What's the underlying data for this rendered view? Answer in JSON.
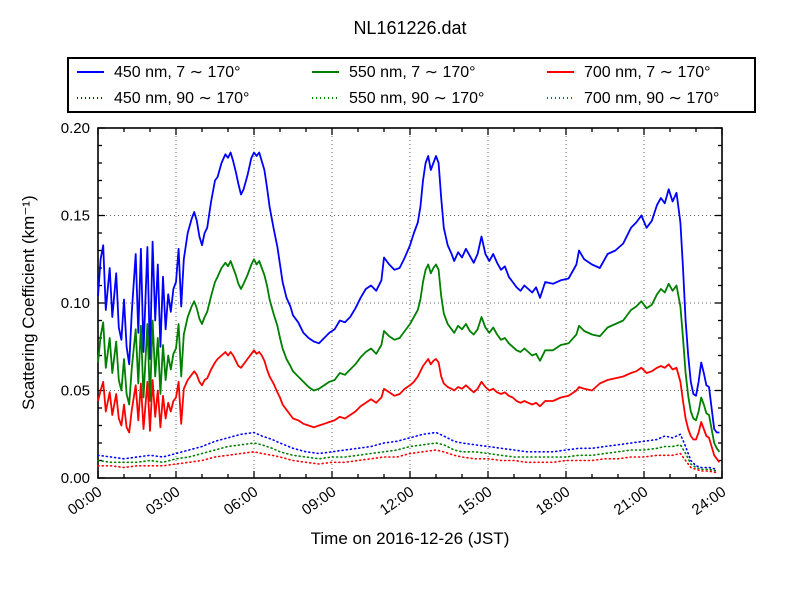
{
  "title": "NL161226.dat",
  "legend": {
    "entries": [
      {
        "id": "450-solid",
        "label": "450 nm, 7 ∼ 170°",
        "color": "#0000ff",
        "style": "solid"
      },
      {
        "id": "550-solid",
        "label": "550 nm, 7 ∼ 170°",
        "color": "#008000",
        "style": "solid"
      },
      {
        "id": "700-solid",
        "label": "700 nm, 7 ∼ 170°",
        "color": "#ff0000",
        "style": "solid"
      },
      {
        "id": "450-dotted",
        "label": "450 nm, 90 ∼ 170°",
        "color": "#0000ff",
        "style": "dotted"
      },
      {
        "id": "550-dotted",
        "label": "550 nm, 90 ∼ 170°",
        "color": "#008000",
        "style": "dotted"
      },
      {
        "id": "700-dotted",
        "label": "700 nm, 90 ∼ 170°",
        "color": "#ff0000",
        "style": "dotted"
      }
    ]
  },
  "chart_data": {
    "type": "line",
    "title": "NL161226.dat",
    "xlabel": "Time on 2016-12-26 (JST)",
    "ylabel": "Scattering Coefficient (km⁻¹)",
    "xlim": [
      0,
      24
    ],
    "ylim": [
      0,
      0.2
    ],
    "grid": true,
    "legend_position": "top",
    "xticks": {
      "values": [
        0,
        3,
        6,
        9,
        12,
        15,
        18,
        21,
        24
      ],
      "labels": [
        "00:00",
        "03:00",
        "06:00",
        "09:00",
        "12:00",
        "15:00",
        "18:00",
        "21:00",
        "24:00"
      ],
      "minor_step": 1,
      "rotation": -35
    },
    "yticks": {
      "values": [
        0,
        0.05,
        0.1,
        0.15,
        0.2
      ],
      "labels": [
        "0.00",
        "0.05",
        "0.10",
        "0.15",
        "0.20"
      ],
      "minor_step": 0.01
    },
    "x_solid": [
      0,
      0.1,
      0.2,
      0.3,
      0.45,
      0.55,
      0.7,
      0.8,
      0.9,
      1.0,
      1.1,
      1.2,
      1.3,
      1.45,
      1.55,
      1.65,
      1.75,
      1.9,
      2.0,
      2.1,
      2.2,
      2.3,
      2.4,
      2.5,
      2.6,
      2.7,
      2.8,
      2.9,
      3.0,
      3.1,
      3.2,
      3.3,
      3.45,
      3.6,
      3.7,
      3.8,
      3.9,
      4.0,
      4.1,
      4.2,
      4.35,
      4.5,
      4.6,
      4.75,
      4.9,
      5.0,
      5.1,
      5.2,
      5.3,
      5.4,
      5.5,
      5.6,
      5.75,
      5.9,
      6.0,
      6.1,
      6.2,
      6.3,
      6.4,
      6.5,
      6.6,
      6.75,
      6.9,
      7.0,
      7.1,
      7.25,
      7.4,
      7.5,
      7.7,
      7.9,
      8.1,
      8.3,
      8.5,
      8.7,
      8.9,
      9.1,
      9.3,
      9.5,
      9.7,
      9.9,
      10.1,
      10.3,
      10.5,
      10.7,
      10.9,
      11.0,
      11.2,
      11.4,
      11.6,
      11.8,
      12.0,
      12.15,
      12.3,
      12.4,
      12.5,
      12.6,
      12.7,
      12.8,
      12.9,
      13.0,
      13.1,
      13.2,
      13.3,
      13.45,
      13.6,
      13.7,
      13.85,
      14.0,
      14.15,
      14.3,
      14.45,
      14.6,
      14.75,
      14.9,
      15.05,
      15.2,
      15.35,
      15.5,
      15.65,
      15.8,
      15.95,
      16.1,
      16.25,
      16.4,
      16.55,
      16.7,
      16.85,
      17.0,
      17.2,
      17.5,
      17.8,
      18.1,
      18.4,
      18.5,
      18.7,
      19.0,
      19.3,
      19.6,
      19.9,
      20.2,
      20.5,
      20.7,
      20.9,
      21.1,
      21.3,
      21.5,
      21.65,
      21.8,
      21.95,
      22.1,
      22.25,
      22.4,
      22.5,
      22.6,
      22.7,
      22.8,
      22.9,
      23.0,
      23.1,
      23.2,
      23.3,
      23.4,
      23.5,
      23.6,
      23.7,
      23.8,
      23.9
    ],
    "x_dotted": [
      0,
      0.5,
      1,
      1.5,
      2,
      2.5,
      3,
      3.5,
      4,
      4.5,
      5,
      5.5,
      6,
      6.3,
      6.7,
      7,
      7.5,
      8,
      8.5,
      9,
      9.5,
      10,
      10.5,
      11,
      11.5,
      12,
      12.5,
      13,
      13.3,
      13.7,
      14,
      14.5,
      15,
      15.5,
      16,
      16.5,
      17,
      17.5,
      18,
      18.5,
      19,
      19.5,
      20,
      20.5,
      21,
      21.5,
      21.8,
      22.1,
      22.4,
      22.6,
      22.8,
      23,
      23.2,
      23.5,
      23.8
    ],
    "series": [
      {
        "id": "450-solid",
        "name": "450 nm, 7 ∼ 170°",
        "color": "#0000ff",
        "style": "solid",
        "x_ref": "x_solid",
        "y": [
          0.104,
          0.125,
          0.133,
          0.096,
          0.12,
          0.092,
          0.117,
          0.086,
          0.079,
          0.102,
          0.075,
          0.065,
          0.095,
          0.128,
          0.083,
          0.131,
          0.072,
          0.132,
          0.068,
          0.135,
          0.09,
          0.122,
          0.075,
          0.115,
          0.085,
          0.105,
          0.095,
          0.108,
          0.112,
          0.131,
          0.098,
          0.125,
          0.14,
          0.148,
          0.152,
          0.147,
          0.138,
          0.133,
          0.14,
          0.143,
          0.158,
          0.17,
          0.172,
          0.18,
          0.185,
          0.183,
          0.186,
          0.181,
          0.175,
          0.168,
          0.162,
          0.165,
          0.173,
          0.183,
          0.186,
          0.184,
          0.186,
          0.181,
          0.176,
          0.166,
          0.155,
          0.143,
          0.132,
          0.122,
          0.112,
          0.103,
          0.098,
          0.093,
          0.089,
          0.083,
          0.08,
          0.078,
          0.077,
          0.08,
          0.083,
          0.085,
          0.09,
          0.089,
          0.092,
          0.097,
          0.103,
          0.108,
          0.11,
          0.107,
          0.113,
          0.126,
          0.122,
          0.119,
          0.12,
          0.126,
          0.133,
          0.14,
          0.146,
          0.155,
          0.17,
          0.18,
          0.184,
          0.176,
          0.18,
          0.184,
          0.18,
          0.16,
          0.143,
          0.133,
          0.128,
          0.124,
          0.129,
          0.126,
          0.131,
          0.127,
          0.123,
          0.128,
          0.138,
          0.128,
          0.124,
          0.128,
          0.123,
          0.119,
          0.121,
          0.115,
          0.112,
          0.109,
          0.107,
          0.11,
          0.108,
          0.106,
          0.109,
          0.103,
          0.112,
          0.111,
          0.113,
          0.114,
          0.122,
          0.13,
          0.125,
          0.122,
          0.12,
          0.128,
          0.13,
          0.134,
          0.143,
          0.146,
          0.15,
          0.143,
          0.147,
          0.156,
          0.16,
          0.157,
          0.165,
          0.158,
          0.163,
          0.146,
          0.12,
          0.09,
          0.07,
          0.055,
          0.048,
          0.047,
          0.055,
          0.066,
          0.06,
          0.053,
          0.052,
          0.04,
          0.028,
          0.026,
          0.026
        ]
      },
      {
        "id": "550-solid",
        "name": "550 nm, 7 ∼ 170°",
        "color": "#008000",
        "style": "solid",
        "x_ref": "x_solid",
        "y": [
          0.066,
          0.081,
          0.089,
          0.063,
          0.08,
          0.06,
          0.078,
          0.056,
          0.05,
          0.068,
          0.048,
          0.042,
          0.063,
          0.085,
          0.054,
          0.087,
          0.046,
          0.088,
          0.044,
          0.09,
          0.058,
          0.08,
          0.048,
          0.076,
          0.056,
          0.07,
          0.062,
          0.071,
          0.074,
          0.088,
          0.058,
          0.082,
          0.092,
          0.098,
          0.101,
          0.097,
          0.091,
          0.088,
          0.092,
          0.095,
          0.104,
          0.112,
          0.115,
          0.12,
          0.123,
          0.121,
          0.124,
          0.12,
          0.116,
          0.111,
          0.108,
          0.111,
          0.116,
          0.122,
          0.125,
          0.122,
          0.124,
          0.12,
          0.116,
          0.11,
          0.102,
          0.094,
          0.087,
          0.08,
          0.074,
          0.068,
          0.064,
          0.061,
          0.058,
          0.055,
          0.052,
          0.05,
          0.051,
          0.053,
          0.055,
          0.056,
          0.06,
          0.059,
          0.062,
          0.065,
          0.069,
          0.072,
          0.074,
          0.071,
          0.076,
          0.084,
          0.081,
          0.079,
          0.08,
          0.084,
          0.088,
          0.092,
          0.096,
          0.102,
          0.112,
          0.119,
          0.122,
          0.117,
          0.12,
          0.122,
          0.119,
          0.104,
          0.094,
          0.088,
          0.085,
          0.083,
          0.087,
          0.085,
          0.088,
          0.084,
          0.082,
          0.085,
          0.092,
          0.086,
          0.083,
          0.086,
          0.082,
          0.079,
          0.08,
          0.077,
          0.075,
          0.073,
          0.072,
          0.074,
          0.072,
          0.07,
          0.071,
          0.067,
          0.073,
          0.073,
          0.076,
          0.077,
          0.082,
          0.087,
          0.084,
          0.082,
          0.081,
          0.086,
          0.088,
          0.09,
          0.096,
          0.098,
          0.101,
          0.097,
          0.099,
          0.105,
          0.108,
          0.106,
          0.111,
          0.107,
          0.11,
          0.098,
          0.08,
          0.06,
          0.047,
          0.038,
          0.034,
          0.033,
          0.038,
          0.046,
          0.042,
          0.037,
          0.036,
          0.028,
          0.02,
          0.017,
          0.015
        ]
      },
      {
        "id": "700-solid",
        "name": "700 nm, 7 ∼ 170°",
        "color": "#ff0000",
        "style": "solid",
        "x_ref": "x_solid",
        "y": [
          0.044,
          0.05,
          0.055,
          0.038,
          0.049,
          0.036,
          0.048,
          0.034,
          0.03,
          0.042,
          0.029,
          0.026,
          0.039,
          0.053,
          0.033,
          0.054,
          0.028,
          0.055,
          0.027,
          0.056,
          0.035,
          0.05,
          0.029,
          0.047,
          0.034,
          0.043,
          0.038,
          0.044,
          0.046,
          0.055,
          0.031,
          0.051,
          0.056,
          0.059,
          0.061,
          0.059,
          0.055,
          0.053,
          0.056,
          0.057,
          0.062,
          0.066,
          0.068,
          0.07,
          0.072,
          0.07,
          0.072,
          0.07,
          0.067,
          0.064,
          0.063,
          0.065,
          0.068,
          0.071,
          0.073,
          0.071,
          0.072,
          0.07,
          0.067,
          0.062,
          0.058,
          0.054,
          0.049,
          0.046,
          0.042,
          0.039,
          0.036,
          0.034,
          0.033,
          0.031,
          0.03,
          0.029,
          0.03,
          0.031,
          0.032,
          0.033,
          0.035,
          0.034,
          0.036,
          0.038,
          0.041,
          0.043,
          0.045,
          0.043,
          0.046,
          0.051,
          0.049,
          0.047,
          0.048,
          0.051,
          0.053,
          0.055,
          0.058,
          0.061,
          0.064,
          0.066,
          0.068,
          0.065,
          0.067,
          0.068,
          0.066,
          0.058,
          0.054,
          0.052,
          0.051,
          0.05,
          0.052,
          0.051,
          0.053,
          0.051,
          0.049,
          0.051,
          0.055,
          0.052,
          0.05,
          0.051,
          0.049,
          0.048,
          0.049,
          0.047,
          0.046,
          0.044,
          0.043,
          0.044,
          0.043,
          0.042,
          0.043,
          0.041,
          0.044,
          0.044,
          0.046,
          0.047,
          0.05,
          0.052,
          0.051,
          0.05,
          0.054,
          0.056,
          0.057,
          0.058,
          0.06,
          0.061,
          0.063,
          0.06,
          0.061,
          0.063,
          0.064,
          0.063,
          0.065,
          0.062,
          0.063,
          0.055,
          0.044,
          0.034,
          0.028,
          0.024,
          0.022,
          0.022,
          0.026,
          0.032,
          0.028,
          0.024,
          0.023,
          0.018,
          0.013,
          0.011,
          0.009
        ]
      },
      {
        "id": "450-dotted",
        "name": "450 nm, 90 ∼ 170°",
        "color": "#0000ff",
        "style": "dotted",
        "x_ref": "x_dotted",
        "y": [
          0.013,
          0.012,
          0.011,
          0.012,
          0.013,
          0.012,
          0.014,
          0.016,
          0.018,
          0.021,
          0.023,
          0.025,
          0.026,
          0.024,
          0.022,
          0.02,
          0.017,
          0.015,
          0.014,
          0.015,
          0.016,
          0.017,
          0.018,
          0.02,
          0.021,
          0.023,
          0.025,
          0.026,
          0.024,
          0.021,
          0.02,
          0.019,
          0.018,
          0.017,
          0.016,
          0.015,
          0.015,
          0.015,
          0.016,
          0.017,
          0.017,
          0.018,
          0.019,
          0.02,
          0.021,
          0.022,
          0.024,
          0.023,
          0.025,
          0.018,
          0.01,
          0.007,
          0.006,
          0.006,
          0.005
        ]
      },
      {
        "id": "550-dotted",
        "name": "550 nm, 90 ∼ 170°",
        "color": "#008000",
        "style": "dotted",
        "x_ref": "x_dotted",
        "y": [
          0.01,
          0.009,
          0.009,
          0.009,
          0.01,
          0.009,
          0.011,
          0.012,
          0.014,
          0.016,
          0.018,
          0.019,
          0.02,
          0.019,
          0.017,
          0.015,
          0.013,
          0.012,
          0.011,
          0.012,
          0.012,
          0.013,
          0.014,
          0.015,
          0.016,
          0.018,
          0.019,
          0.02,
          0.019,
          0.016,
          0.015,
          0.015,
          0.014,
          0.013,
          0.012,
          0.012,
          0.012,
          0.012,
          0.012,
          0.013,
          0.013,
          0.014,
          0.015,
          0.016,
          0.016,
          0.017,
          0.018,
          0.018,
          0.019,
          0.014,
          0.008,
          0.006,
          0.005,
          0.005,
          0.004
        ]
      },
      {
        "id": "700-dotted",
        "name": "700 nm, 90 ∼ 170°",
        "color": "#ff0000",
        "style": "dotted",
        "x_ref": "x_dotted",
        "y": [
          0.007,
          0.007,
          0.006,
          0.007,
          0.007,
          0.007,
          0.008,
          0.009,
          0.01,
          0.012,
          0.013,
          0.014,
          0.015,
          0.014,
          0.013,
          0.012,
          0.01,
          0.009,
          0.008,
          0.009,
          0.009,
          0.01,
          0.011,
          0.012,
          0.012,
          0.014,
          0.015,
          0.016,
          0.015,
          0.013,
          0.012,
          0.011,
          0.011,
          0.01,
          0.01,
          0.009,
          0.009,
          0.009,
          0.01,
          0.01,
          0.01,
          0.011,
          0.011,
          0.012,
          0.012,
          0.013,
          0.013,
          0.013,
          0.014,
          0.01,
          0.006,
          0.005,
          0.004,
          0.004,
          0.003
        ]
      }
    ]
  }
}
